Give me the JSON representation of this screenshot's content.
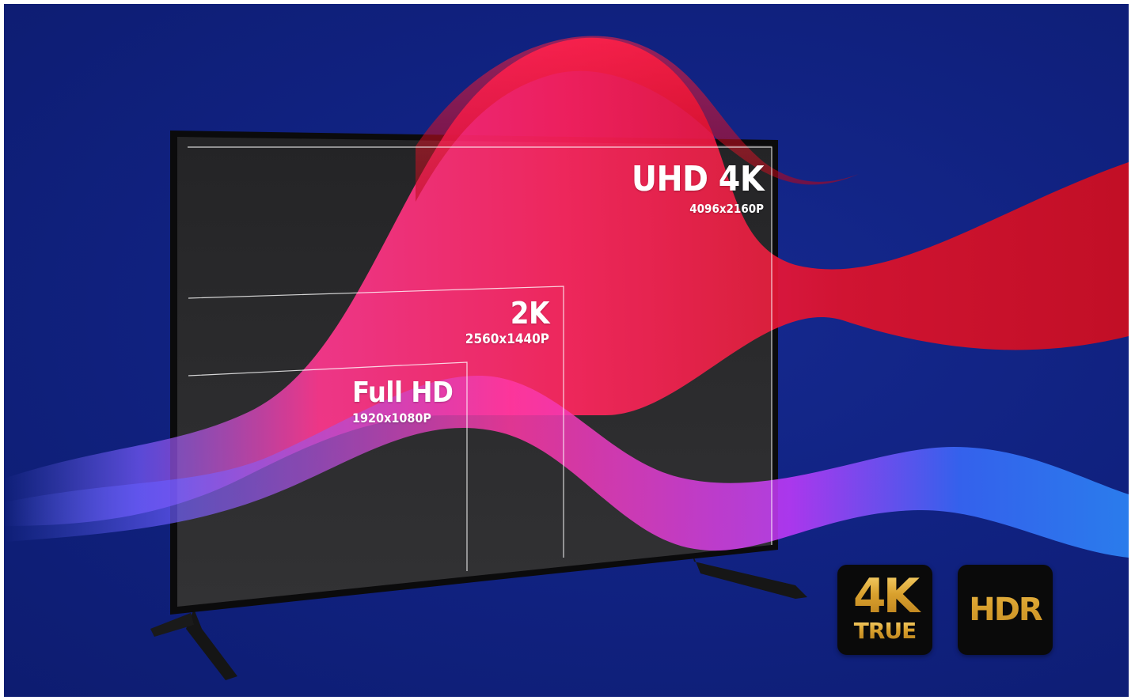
{
  "resolutions": {
    "uhd": {
      "name": "UHD 4K",
      "spec": "4096x2160P"
    },
    "qhd": {
      "name": "2K",
      "spec": "2560x1440P"
    },
    "fhd": {
      "name": "Full HD",
      "spec": "1920x1080P"
    }
  },
  "badges": {
    "true4k": {
      "top": "4K",
      "bottom": "TRUE"
    },
    "hdr": {
      "text": "HDR"
    }
  },
  "colors": {
    "background": "#10217f",
    "badge_gold": "#d7a736",
    "badge_bg": "#0a0a0a",
    "wave_red": "#e0122a",
    "wave_pink": "#ff2f8a",
    "wave_blue": "#3a6cff"
  }
}
